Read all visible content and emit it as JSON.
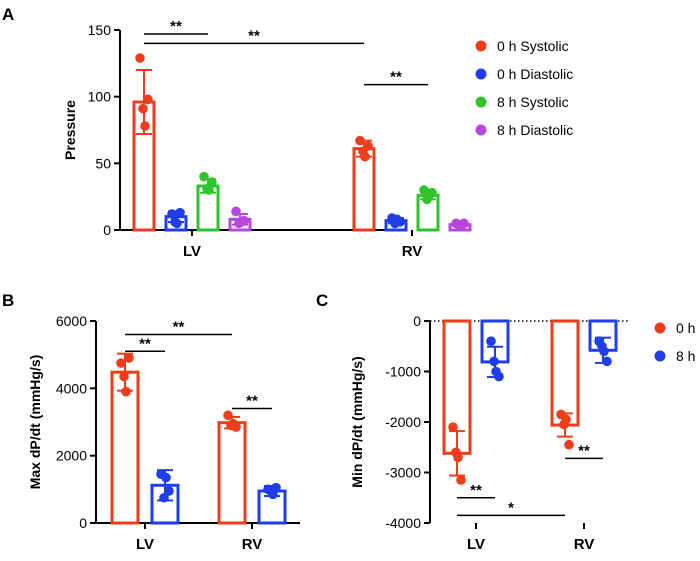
{
  "panels": {
    "A": {
      "letter": "A",
      "chart_data": {
        "type": "bar",
        "categories": [
          "LV",
          "RV"
        ],
        "ylabel": "Pressure",
        "ylim": [
          0,
          150
        ],
        "yticks": [
          0,
          50,
          100,
          150
        ],
        "series": [
          {
            "name": "0 h Systolic",
            "color": "#ee3d1c",
            "values": [
              96,
              61
            ],
            "err": [
              24,
              6
            ],
            "points": [
              [
                129,
                91,
                78,
                98
              ],
              [
                67,
                59,
                55,
                63
              ]
            ]
          },
          {
            "name": "0 h Diastolic",
            "color": "#1f3de8",
            "values": [
              10,
              7
            ],
            "err": [
              4,
              2
            ],
            "points": [
              [
                12,
                6,
                5,
                13
              ],
              [
                9,
                5,
                8,
                6
              ]
            ]
          },
          {
            "name": "8 h Systolic",
            "color": "#2fc52a",
            "values": [
              33,
              26
            ],
            "err": [
              5,
              3
            ],
            "points": [
              [
                40,
                31,
                30,
                36
              ],
              [
                30,
                23,
                26,
                28
              ]
            ]
          },
          {
            "name": "8 h Diastolic",
            "color": "#b647dd",
            "values": [
              8,
              4
            ],
            "err": [
              4,
              1
            ],
            "points": [
              [
                14,
                5,
                6,
                7
              ],
              [
                5,
                4,
                3,
                5
              ]
            ]
          }
        ],
        "significance": [
          {
            "label": "**",
            "cat_from": 0,
            "ser_from": 0,
            "cat_to": 0,
            "ser_to": 2,
            "y": 147
          },
          {
            "label": "**",
            "cat_from": 0,
            "ser_from": 0,
            "cat_to": 1,
            "ser_to": 0,
            "y": 140
          },
          {
            "label": "**",
            "cat_from": 1,
            "ser_from": 0,
            "cat_to": 1,
            "ser_to": 2,
            "y": 109
          }
        ],
        "legend_position": "right"
      }
    },
    "B": {
      "letter": "B",
      "chart_data": {
        "type": "bar",
        "categories": [
          "LV",
          "RV"
        ],
        "ylabel": "Max dP/dt (mmHg/s)",
        "ylim": [
          0,
          6000
        ],
        "yticks": [
          0,
          2000,
          4000,
          6000
        ],
        "series": [
          {
            "name": "0 h",
            "color": "#ee3d1c",
            "values": [
              4480,
              2980
            ],
            "err": [
              550,
              170
            ],
            "points": [
              [
                4750,
                4350,
                3900,
                4900
              ],
              [
                3200,
                2900,
                2950,
                2850
              ]
            ]
          },
          {
            "name": "8 h",
            "color": "#1f3de8",
            "values": [
              1120,
              950
            ],
            "err": [
              450,
              150
            ],
            "points": [
              [
                1450,
                750,
                1350,
                950
              ],
              [
                1000,
                950,
                850,
                1050
              ]
            ]
          }
        ],
        "significance": [
          {
            "label": "**",
            "cat_from": 0,
            "ser_from": 0,
            "cat_to": 0,
            "ser_to": 1,
            "y": 5100
          },
          {
            "label": "**",
            "cat_from": 0,
            "ser_from": 0,
            "cat_to": 1,
            "ser_to": 0,
            "y": 5600
          },
          {
            "label": "**",
            "cat_from": 1,
            "ser_from": 0,
            "cat_to": 1,
            "ser_to": 1,
            "y": 3400
          }
        ]
      }
    },
    "C": {
      "letter": "C",
      "chart_data": {
        "type": "bar",
        "categories": [
          "LV",
          "RV"
        ],
        "ylabel": "Min dP/dt (mmHg/s)",
        "ylim": [
          -4000,
          0
        ],
        "yticks": [
          0,
          -1000,
          -2000,
          -3000,
          -4000
        ],
        "zero_line": "dotted",
        "series": [
          {
            "name": "0 h",
            "color": "#ee3d1c",
            "values": [
              -2620,
              -2060
            ],
            "err": [
              440,
              230
            ],
            "points": [
              [
                -2100,
                -2600,
                -2700,
                -3150
              ],
              [
                -1850,
                -2050,
                -1950,
                -2450
              ]
            ]
          },
          {
            "name": "8 h",
            "color": "#1f3de8",
            "values": [
              -810,
              -580
            ],
            "err": [
              300,
              250
            ],
            "points": [
              [
                -400,
                -800,
                -1000,
                -1100
              ],
              [
                -400,
                -500,
                -600,
                -800
              ]
            ]
          }
        ],
        "significance": [
          {
            "label": "**",
            "cat_from": 0,
            "ser_from": 0,
            "cat_to": 0,
            "ser_to": 1,
            "y": -3500
          },
          {
            "label": "*",
            "cat_from": 0,
            "ser_from": 0,
            "cat_to": 1,
            "ser_to": 0,
            "y": -3850
          },
          {
            "label": "**",
            "cat_from": 1,
            "ser_from": 0,
            "cat_to": 1,
            "ser_to": 1,
            "y": -2720
          }
        ],
        "legend_position": "right"
      }
    }
  }
}
